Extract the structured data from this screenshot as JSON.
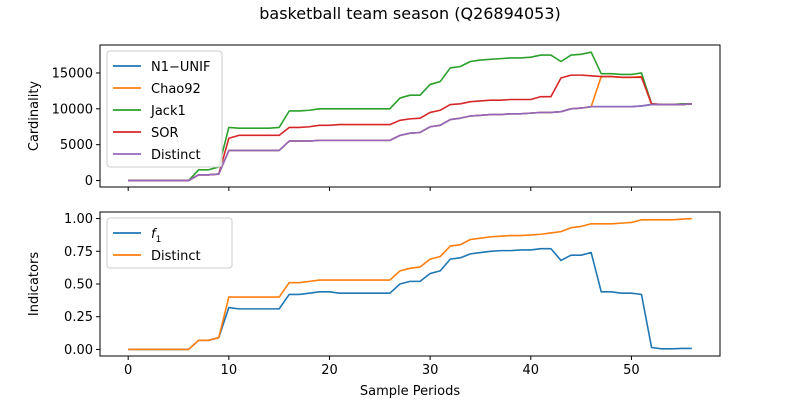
{
  "title": "basketball team season (Q26894053)",
  "chart_data": [
    {
      "type": "line",
      "ylabel": "Cardinality",
      "xlabel": "",
      "xlim": [
        -2.8,
        58.8
      ],
      "ylim": [
        -900,
        18900
      ],
      "xticks": [
        0,
        10,
        20,
        30,
        40,
        50
      ],
      "yticks": [
        0,
        5000,
        10000,
        15000
      ],
      "ytick_labels": [
        "0",
        "5000",
        "10000",
        "15000"
      ],
      "legend": "top-left",
      "series": [
        {
          "name": "N1−UNIF",
          "color": "#1f77b4",
          "x": [
            0,
            1,
            2,
            3,
            4,
            5,
            6,
            7,
            8,
            9,
            10,
            11,
            12,
            13,
            14,
            15,
            16,
            17,
            18,
            19,
            20,
            21,
            22,
            23,
            24,
            25,
            26,
            27,
            28,
            29,
            30,
            31,
            32,
            33,
            34,
            35,
            36,
            37,
            38,
            39,
            40,
            41,
            42,
            43,
            44,
            45,
            46,
            47,
            48,
            49,
            50,
            51,
            52,
            53,
            54,
            55,
            56
          ],
          "y": [
            0,
            0,
            0,
            0,
            0,
            0,
            0,
            800,
            800,
            900,
            4200,
            4200,
            4200,
            4200,
            4200,
            4200,
            5500,
            5500,
            5500,
            5600,
            5600,
            5600,
            5600,
            5600,
            5600,
            5600,
            5600,
            6300,
            6600,
            6700,
            7500,
            7700,
            8500,
            8700,
            9000,
            9100,
            9200,
            9200,
            9300,
            9300,
            9400,
            9500,
            9500,
            9600,
            10000,
            10100,
            10300,
            10300,
            10300,
            10300,
            10300,
            10400,
            10600,
            10600,
            10600,
            10600,
            10700
          ]
        },
        {
          "name": "Chao92",
          "color": "#ff7f0e",
          "x": [
            0,
            1,
            2,
            3,
            4,
            5,
            6,
            7,
            8,
            9,
            10,
            11,
            12,
            13,
            14,
            15,
            16,
            17,
            18,
            19,
            20,
            21,
            22,
            23,
            24,
            25,
            26,
            27,
            28,
            29,
            30,
            31,
            32,
            33,
            34,
            35,
            36,
            37,
            38,
            39,
            40,
            41,
            42,
            43,
            44,
            45,
            46,
            47,
            48,
            49,
            50,
            51,
            52,
            53,
            54,
            55,
            56
          ],
          "y": [
            0,
            0,
            0,
            0,
            0,
            0,
            0,
            800,
            800,
            900,
            4200,
            4200,
            4200,
            4200,
            4200,
            4200,
            5500,
            5500,
            5500,
            5600,
            5600,
            5600,
            5600,
            5600,
            5600,
            5600,
            5600,
            6300,
            6600,
            6700,
            7500,
            7700,
            8500,
            8700,
            9000,
            9100,
            9200,
            9200,
            9300,
            9300,
            9400,
            9500,
            9500,
            9600,
            10000,
            10100,
            10300,
            14500,
            14500,
            14400,
            14400,
            14500,
            10600,
            10600,
            10600,
            10600,
            10700
          ]
        },
        {
          "name": "Jack1",
          "color": "#2ca02c",
          "x": [
            0,
            1,
            2,
            3,
            4,
            5,
            6,
            7,
            8,
            9,
            10,
            11,
            12,
            13,
            14,
            15,
            16,
            17,
            18,
            19,
            20,
            21,
            22,
            23,
            24,
            25,
            26,
            27,
            28,
            29,
            30,
            31,
            32,
            33,
            34,
            35,
            36,
            37,
            38,
            39,
            40,
            41,
            42,
            43,
            44,
            45,
            46,
            47,
            48,
            49,
            50,
            51,
            52,
            53,
            54,
            55,
            56
          ],
          "y": [
            0,
            0,
            0,
            0,
            0,
            0,
            0,
            1500,
            1500,
            1900,
            7400,
            7300,
            7300,
            7300,
            7300,
            7400,
            9700,
            9700,
            9800,
            10000,
            10000,
            10000,
            10000,
            10000,
            10000,
            10000,
            10000,
            11500,
            11900,
            11900,
            13400,
            13800,
            15700,
            15900,
            16600,
            16800,
            16900,
            17000,
            17100,
            17100,
            17200,
            17500,
            17500,
            16600,
            17500,
            17600,
            17900,
            14900,
            14900,
            14800,
            14800,
            15000,
            10700,
            10600,
            10600,
            10700,
            10700
          ]
        },
        {
          "name": "SOR",
          "color": "#d62728",
          "x": [
            0,
            1,
            2,
            3,
            4,
            5,
            6,
            7,
            8,
            9,
            10,
            11,
            12,
            13,
            14,
            15,
            16,
            17,
            18,
            19,
            20,
            21,
            22,
            23,
            24,
            25,
            26,
            27,
            28,
            29,
            30,
            31,
            32,
            33,
            34,
            35,
            36,
            37,
            38,
            39,
            40,
            41,
            42,
            43,
            44,
            45,
            46,
            47,
            48,
            49,
            50,
            51,
            52,
            53,
            54,
            55,
            56
          ],
          "y": [
            0,
            0,
            0,
            0,
            0,
            0,
            0,
            800,
            800,
            900,
            5900,
            6300,
            6300,
            6300,
            6300,
            6300,
            7400,
            7400,
            7500,
            7700,
            7700,
            7800,
            7800,
            7800,
            7800,
            7800,
            7800,
            8400,
            8600,
            8700,
            9500,
            9800,
            10600,
            10700,
            11000,
            11100,
            11200,
            11200,
            11300,
            11300,
            11300,
            11700,
            11700,
            14300,
            14700,
            14700,
            14600,
            14500,
            14500,
            14400,
            14400,
            14400,
            10700,
            10600,
            10600,
            10600,
            10700
          ]
        },
        {
          "name": "Distinct",
          "color": "#9467bd",
          "x": [
            0,
            1,
            2,
            3,
            4,
            5,
            6,
            7,
            8,
            9,
            10,
            11,
            12,
            13,
            14,
            15,
            16,
            17,
            18,
            19,
            20,
            21,
            22,
            23,
            24,
            25,
            26,
            27,
            28,
            29,
            30,
            31,
            32,
            33,
            34,
            35,
            36,
            37,
            38,
            39,
            40,
            41,
            42,
            43,
            44,
            45,
            46,
            47,
            48,
            49,
            50,
            51,
            52,
            53,
            54,
            55,
            56
          ],
          "y": [
            0,
            0,
            0,
            0,
            0,
            0,
            0,
            800,
            800,
            900,
            4200,
            4200,
            4200,
            4200,
            4200,
            4200,
            5500,
            5500,
            5500,
            5600,
            5600,
            5600,
            5600,
            5600,
            5600,
            5600,
            5600,
            6300,
            6600,
            6700,
            7500,
            7700,
            8500,
            8700,
            9000,
            9100,
            9200,
            9200,
            9300,
            9300,
            9400,
            9500,
            9500,
            9600,
            10000,
            10100,
            10300,
            10300,
            10300,
            10300,
            10300,
            10400,
            10600,
            10600,
            10600,
            10600,
            10700
          ]
        }
      ]
    },
    {
      "type": "line",
      "ylabel": "Indicators",
      "xlabel": "Sample Periods",
      "xlim": [
        -2.8,
        58.8
      ],
      "ylim": [
        -0.05,
        1.05
      ],
      "xticks": [
        0,
        10,
        20,
        30,
        40,
        50
      ],
      "yticks": [
        0,
        0.25,
        0.5,
        0.75,
        1.0
      ],
      "ytick_labels": [
        "0.00",
        "0.25",
        "0.50",
        "0.75",
        "1.00"
      ],
      "legend": "top-left",
      "series": [
        {
          "name": "f",
          "name_sub": "1",
          "color": "#1f77b4",
          "x": [
            0,
            1,
            2,
            3,
            4,
            5,
            6,
            7,
            8,
            9,
            10,
            11,
            12,
            13,
            14,
            15,
            16,
            17,
            18,
            19,
            20,
            21,
            22,
            23,
            24,
            25,
            26,
            27,
            28,
            29,
            30,
            31,
            32,
            33,
            34,
            35,
            36,
            37,
            38,
            39,
            40,
            41,
            42,
            43,
            44,
            45,
            46,
            47,
            48,
            49,
            50,
            51,
            52,
            53,
            54,
            55,
            56
          ],
          "y": [
            0,
            0,
            0,
            0,
            0,
            0,
            0,
            0.07,
            0.07,
            0.09,
            0.32,
            0.31,
            0.31,
            0.31,
            0.31,
            0.31,
            0.42,
            0.42,
            0.43,
            0.44,
            0.44,
            0.43,
            0.43,
            0.43,
            0.43,
            0.43,
            0.43,
            0.5,
            0.52,
            0.52,
            0.58,
            0.6,
            0.69,
            0.7,
            0.73,
            0.74,
            0.75,
            0.755,
            0.755,
            0.76,
            0.76,
            0.77,
            0.77,
            0.68,
            0.72,
            0.72,
            0.74,
            0.44,
            0.44,
            0.43,
            0.43,
            0.42,
            0.015,
            0.005,
            0.005,
            0.008,
            0.008
          ]
        },
        {
          "name": "Distinct",
          "color": "#ff7f0e",
          "x": [
            0,
            1,
            2,
            3,
            4,
            5,
            6,
            7,
            8,
            9,
            10,
            11,
            12,
            13,
            14,
            15,
            16,
            17,
            18,
            19,
            20,
            21,
            22,
            23,
            24,
            25,
            26,
            27,
            28,
            29,
            30,
            31,
            32,
            33,
            34,
            35,
            36,
            37,
            38,
            39,
            40,
            41,
            42,
            43,
            44,
            45,
            46,
            47,
            48,
            49,
            50,
            51,
            52,
            53,
            54,
            55,
            56
          ],
          "y": [
            0,
            0,
            0,
            0,
            0,
            0,
            0,
            0.07,
            0.07,
            0.09,
            0.4,
            0.4,
            0.4,
            0.4,
            0.4,
            0.4,
            0.51,
            0.51,
            0.52,
            0.53,
            0.53,
            0.53,
            0.53,
            0.53,
            0.53,
            0.53,
            0.53,
            0.6,
            0.62,
            0.63,
            0.69,
            0.71,
            0.79,
            0.8,
            0.84,
            0.85,
            0.86,
            0.865,
            0.87,
            0.87,
            0.875,
            0.88,
            0.89,
            0.9,
            0.93,
            0.94,
            0.96,
            0.96,
            0.96,
            0.965,
            0.97,
            0.99,
            0.99,
            0.99,
            0.99,
            0.995,
            1.0
          ]
        }
      ]
    }
  ]
}
